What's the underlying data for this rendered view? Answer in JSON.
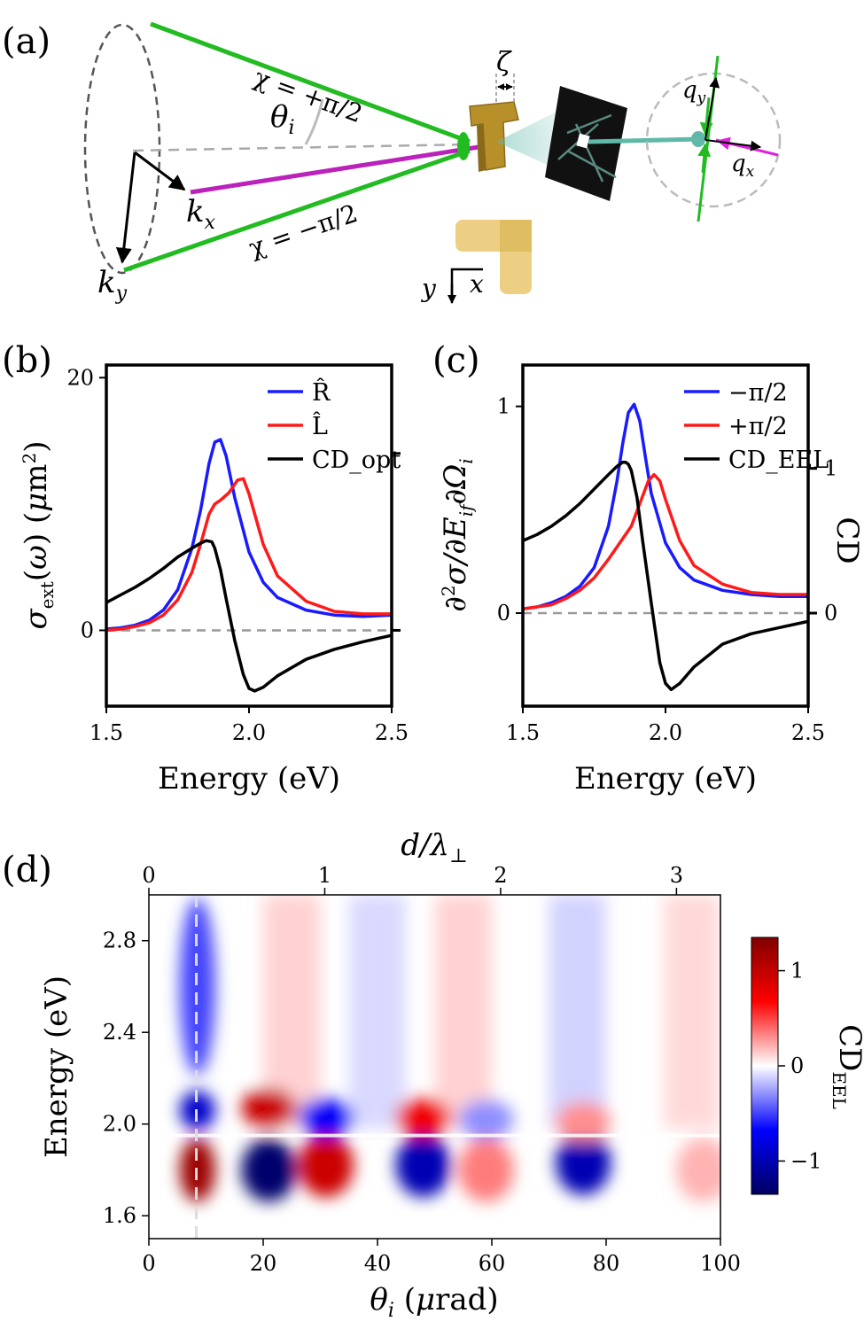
{
  "colors": {
    "blue": "#1a1aff",
    "red": "#ff1a1a",
    "black": "#000000",
    "green": "#22bb22",
    "magenta": "#bb22bb",
    "teal": "#5fb8a8",
    "gold": "#b8902a",
    "gray": "#999999"
  },
  "panel_a": {
    "label": "(a)",
    "chi_plus": "χ = +π/2",
    "chi_minus": "χ = −π/2",
    "theta": "θ",
    "theta_sub": "i",
    "zeta": "ζ",
    "kx": "k",
    "kx_sub": "x",
    "ky": "k",
    "ky_sub": "y",
    "qx": "q",
    "qx_sub": "x",
    "qy": "q",
    "qy_sub": "y",
    "axis_y": "y",
    "axis_x": "x"
  },
  "chart_data": [
    {
      "type": "line",
      "panel": "(b)",
      "xlabel": "Energy (eV)",
      "ylabel": "σ_ext(ω) (μm²)",
      "xlim": [
        1.5,
        2.5
      ],
      "ylim": [
        -6,
        21
      ],
      "xticks": [
        "1.5",
        "2.0",
        "2.5"
      ],
      "yticks_left": [
        "0",
        "20"
      ],
      "legend_position": "top-right",
      "series": [
        {
          "name": "R̂",
          "color": "blue",
          "x": [
            1.5,
            1.55,
            1.6,
            1.65,
            1.7,
            1.75,
            1.8,
            1.83,
            1.86,
            1.88,
            1.9,
            1.92,
            1.95,
            2.0,
            2.05,
            2.1,
            2.2,
            2.3,
            2.4,
            2.5
          ],
          "y": [
            0.1,
            0.2,
            0.4,
            0.8,
            1.6,
            3.2,
            6.5,
            9.5,
            13.2,
            14.9,
            15.1,
            13.8,
            10.5,
            6.2,
            3.8,
            2.6,
            1.6,
            1.2,
            1.1,
            1.2
          ]
        },
        {
          "name": "L̂",
          "color": "red",
          "x": [
            1.5,
            1.55,
            1.6,
            1.65,
            1.7,
            1.75,
            1.8,
            1.83,
            1.86,
            1.88,
            1.9,
            1.93,
            1.96,
            1.98,
            2.0,
            2.05,
            2.1,
            2.2,
            2.3,
            2.4,
            2.5
          ],
          "y": [
            0.0,
            0.1,
            0.3,
            0.6,
            1.2,
            2.4,
            4.6,
            6.8,
            9.2,
            10.0,
            10.3,
            10.9,
            11.9,
            12.0,
            10.8,
            6.8,
            4.3,
            2.3,
            1.5,
            1.3,
            1.3
          ]
        },
        {
          "name": "CD_opt",
          "color": "black",
          "x": [
            1.5,
            1.55,
            1.6,
            1.65,
            1.7,
            1.75,
            1.8,
            1.83,
            1.85,
            1.87,
            1.88,
            1.9,
            1.92,
            1.95,
            1.98,
            2.0,
            2.02,
            2.05,
            2.1,
            2.2,
            2.3,
            2.4,
            2.5
          ],
          "y": [
            2.2,
            2.8,
            3.4,
            4.1,
            4.9,
            5.8,
            6.5,
            6.9,
            7.1,
            7.0,
            6.5,
            4.8,
            2.5,
            -0.8,
            -3.5,
            -4.6,
            -4.8,
            -4.5,
            -3.6,
            -2.3,
            -1.5,
            -0.9,
            -0.4
          ]
        }
      ]
    },
    {
      "type": "line",
      "panel": "(c)",
      "xlabel": "Energy (eV)",
      "ylabel": "∂²σ/∂E_if∂Ω_i",
      "ylabel_right": "CD",
      "xlim": [
        1.5,
        2.5
      ],
      "ylim": [
        -0.45,
        1.2
      ],
      "xticks": [
        "1.5",
        "2.0",
        "2.5"
      ],
      "yticks_left": [
        "0",
        "1"
      ],
      "yticks_right": [
        "0",
        "1"
      ],
      "legend_position": "top-right",
      "series": [
        {
          "name": "−π/2",
          "color": "blue",
          "x": [
            1.5,
            1.55,
            1.6,
            1.65,
            1.7,
            1.75,
            1.8,
            1.83,
            1.85,
            1.87,
            1.89,
            1.91,
            1.93,
            1.95,
            2.0,
            2.05,
            2.1,
            2.2,
            2.3,
            2.4,
            2.5
          ],
          "y": [
            0.02,
            0.03,
            0.05,
            0.08,
            0.13,
            0.22,
            0.42,
            0.64,
            0.82,
            0.97,
            1.01,
            0.93,
            0.75,
            0.58,
            0.34,
            0.22,
            0.16,
            0.11,
            0.09,
            0.08,
            0.08
          ]
        },
        {
          "name": "+π/2",
          "color": "red",
          "x": [
            1.5,
            1.55,
            1.6,
            1.65,
            1.7,
            1.75,
            1.8,
            1.85,
            1.88,
            1.91,
            1.94,
            1.96,
            1.98,
            2.0,
            2.05,
            2.1,
            2.2,
            2.3,
            2.4,
            2.5
          ],
          "y": [
            0.02,
            0.03,
            0.04,
            0.07,
            0.11,
            0.17,
            0.26,
            0.36,
            0.42,
            0.53,
            0.64,
            0.67,
            0.64,
            0.55,
            0.35,
            0.23,
            0.14,
            0.1,
            0.09,
            0.09
          ]
        },
        {
          "name": "CD_EEL",
          "color": "black",
          "x": [
            1.5,
            1.55,
            1.6,
            1.65,
            1.7,
            1.75,
            1.8,
            1.83,
            1.85,
            1.86,
            1.87,
            1.88,
            1.9,
            1.92,
            1.95,
            1.98,
            2.0,
            2.02,
            2.05,
            2.1,
            2.2,
            2.3,
            2.4,
            2.5
          ],
          "y": [
            0.35,
            0.38,
            0.42,
            0.47,
            0.53,
            0.6,
            0.67,
            0.71,
            0.73,
            0.73,
            0.72,
            0.69,
            0.56,
            0.35,
            0.05,
            -0.24,
            -0.34,
            -0.37,
            -0.34,
            -0.26,
            -0.15,
            -0.1,
            -0.07,
            -0.04
          ]
        }
      ]
    },
    {
      "type": "heatmap",
      "panel": "(d)",
      "xlabel": "θ_i (μrad)",
      "ylabel": "Energy (eV)",
      "top_xlabel": "d/λ⊥",
      "colorbar_label": "CD_EEL",
      "xlim": [
        0,
        100
      ],
      "ylim": [
        1.5,
        3.0
      ],
      "xticks": [
        "0",
        "20",
        "40",
        "60",
        "80",
        "100"
      ],
      "yticks": [
        "1.6",
        "2.0",
        "2.4",
        "2.8"
      ],
      "top_xticks": [
        "0",
        "1",
        "2",
        "3"
      ],
      "colorbar_ticks": [
        "1",
        "0",
        "−1"
      ],
      "colorbar_range": [
        -1.35,
        1.35
      ],
      "colormap": "seismic",
      "dashed_line_theta": 8.3,
      "boundary_energy": 1.95,
      "lobes": [
        {
          "theta": 8.5,
          "energy": 1.8,
          "value": 1.2
        },
        {
          "theta": 8.5,
          "energy": 2.06,
          "value": -0.9
        },
        {
          "theta": 8.5,
          "energy": 2.6,
          "value": -0.5
        },
        {
          "theta": 21,
          "energy": 1.8,
          "value": -1.3
        },
        {
          "theta": 21,
          "energy": 2.07,
          "value": 0.95
        },
        {
          "theta": 31,
          "energy": 1.82,
          "value": 0.95
        },
        {
          "theta": 31,
          "energy": 2.03,
          "value": -0.7
        },
        {
          "theta": 48,
          "energy": 1.82,
          "value": -1.0
        },
        {
          "theta": 48,
          "energy": 2.03,
          "value": 0.75
        },
        {
          "theta": 59,
          "energy": 1.8,
          "value": 0.35
        },
        {
          "theta": 59,
          "energy": 2.02,
          "value": -0.3
        },
        {
          "theta": 76,
          "energy": 1.83,
          "value": -1.0
        },
        {
          "theta": 76,
          "energy": 2.01,
          "value": 0.3
        },
        {
          "theta": 97,
          "energy": 1.8,
          "value": 0.2
        }
      ]
    }
  ]
}
